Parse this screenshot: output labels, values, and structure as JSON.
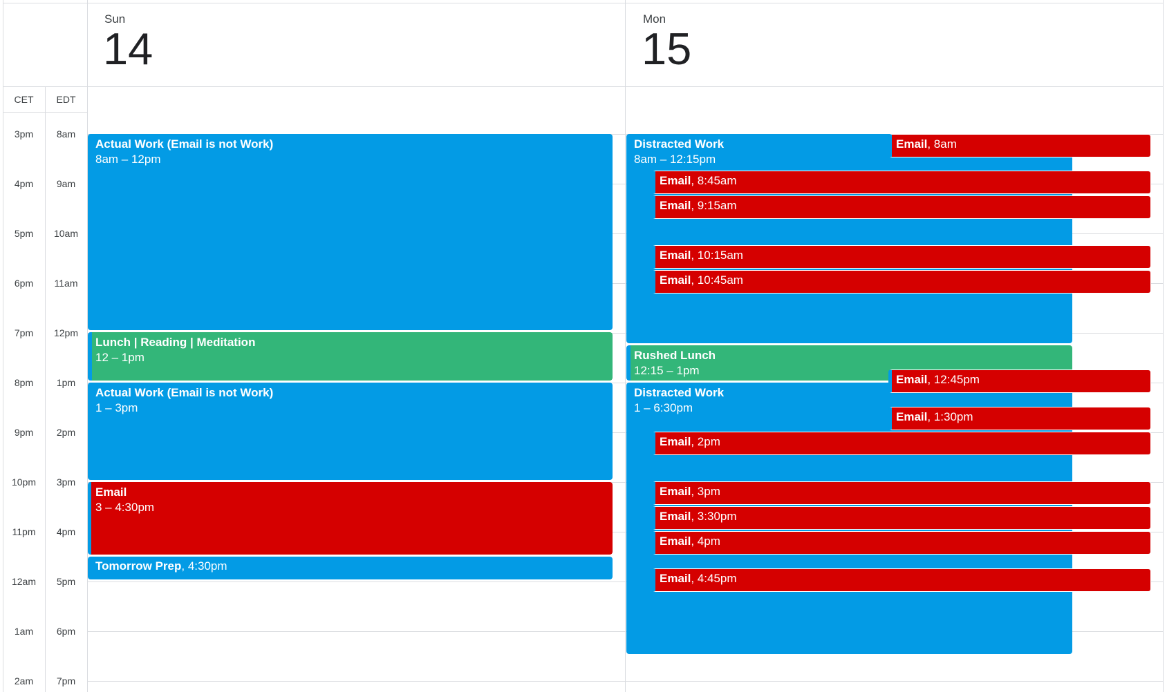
{
  "timezones": {
    "primary": "CET",
    "secondary": "EDT"
  },
  "time_rows": [
    {
      "cet": "3pm",
      "edt": "8am"
    },
    {
      "cet": "4pm",
      "edt": "9am"
    },
    {
      "cet": "5pm",
      "edt": "10am"
    },
    {
      "cet": "6pm",
      "edt": "11am"
    },
    {
      "cet": "7pm",
      "edt": "12pm"
    },
    {
      "cet": "8pm",
      "edt": "1pm"
    },
    {
      "cet": "9pm",
      "edt": "2pm"
    },
    {
      "cet": "10pm",
      "edt": "3pm"
    },
    {
      "cet": "11pm",
      "edt": "4pm"
    },
    {
      "cet": "12am",
      "edt": "5pm"
    },
    {
      "cet": "1am",
      "edt": "6pm"
    },
    {
      "cet": "2am",
      "edt": "7pm"
    }
  ],
  "colors": {
    "work": "#039be5",
    "break": "#33b679",
    "email": "#d50000",
    "grid": "#dadce0"
  },
  "days": [
    {
      "weekday": "Sun",
      "date": "14",
      "events": [
        {
          "title": "Actual Work (Email is not Work)",
          "time": "8am – 12pm",
          "color": "blue"
        },
        {
          "title": "Lunch | Reading | Meditation",
          "time": "12 – 1pm",
          "color": "green"
        },
        {
          "title": "Actual Work (Email is not Work)",
          "time": "1 – 3pm",
          "color": "blue"
        },
        {
          "title": "Email",
          "time": "3 – 4:30pm",
          "color": "red"
        },
        {
          "title": "Tomorrow Prep",
          "time": ", 4:30pm",
          "color": "blue"
        }
      ]
    },
    {
      "weekday": "Mon",
      "date": "15",
      "events": [
        {
          "title": "Distracted Work",
          "time": "8am – 12:15pm",
          "color": "blue"
        },
        {
          "title": "Rushed Lunch",
          "time": "12:15 – 1pm",
          "color": "green"
        },
        {
          "title": "Distracted Work",
          "time": "1 – 6:30pm",
          "color": "blue"
        },
        {
          "title": "Email",
          "time": ", 8am",
          "color": "red"
        },
        {
          "title": "Email",
          "time": ", 8:45am",
          "color": "red"
        },
        {
          "title": "Email",
          "time": ", 9:15am",
          "color": "red"
        },
        {
          "title": "Email",
          "time": ", 10:15am",
          "color": "red"
        },
        {
          "title": "Email",
          "time": ", 10:45am",
          "color": "red"
        },
        {
          "title": "Email",
          "time": ", 12:45pm",
          "color": "red"
        },
        {
          "title": "Email",
          "time": ", 1:30pm",
          "color": "red"
        },
        {
          "title": "Email",
          "time": ", 2pm",
          "color": "red"
        },
        {
          "title": "Email",
          "time": ", 3pm",
          "color": "red"
        },
        {
          "title": "Email",
          "time": ", 3:30pm",
          "color": "red"
        },
        {
          "title": "Email",
          "time": ", 4pm",
          "color": "red"
        },
        {
          "title": "Email",
          "time": ", 4:45pm",
          "color": "red"
        }
      ]
    }
  ]
}
